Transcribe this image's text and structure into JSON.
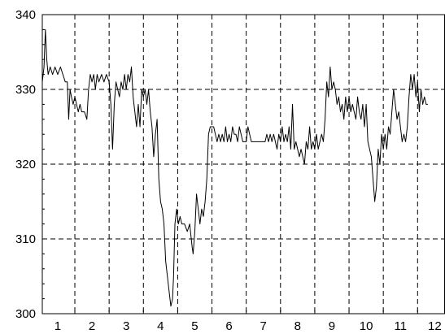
{
  "chart_data": {
    "type": "line",
    "title": "",
    "xlabel": "",
    "ylabel": "",
    "xlim": [
      0.55,
      12.3
    ],
    "ylim": [
      300,
      340
    ],
    "y_ticks": [
      300,
      310,
      320,
      330,
      340
    ],
    "x_ticks": [
      1,
      2,
      3,
      4,
      5,
      6,
      7,
      8,
      9,
      10,
      11,
      12
    ],
    "x_gridlines": [
      1.5,
      2.5,
      3.5,
      4.5,
      5.5,
      6.5,
      7.5,
      8.5,
      9.5,
      10.5,
      11.5
    ],
    "y_gridlines": [
      310,
      320,
      330
    ],
    "grid": true,
    "grid_style": "dashed",
    "series": [
      {
        "color": "#000000",
        "points": [
          [
            0.55,
            331
          ],
          [
            0.6,
            333
          ],
          [
            0.64,
            338
          ],
          [
            0.68,
            334
          ],
          [
            0.72,
            332
          ],
          [
            0.78,
            333
          ],
          [
            0.85,
            332
          ],
          [
            0.92,
            333
          ],
          [
            1.0,
            332
          ],
          [
            1.08,
            333
          ],
          [
            1.15,
            332
          ],
          [
            1.22,
            331
          ],
          [
            1.28,
            331
          ],
          [
            1.32,
            326
          ],
          [
            1.36,
            330
          ],
          [
            1.4,
            329
          ],
          [
            1.45,
            328
          ],
          [
            1.5,
            329
          ],
          [
            1.55,
            328
          ],
          [
            1.6,
            327
          ],
          [
            1.65,
            328
          ],
          [
            1.7,
            327
          ],
          [
            1.78,
            327
          ],
          [
            1.85,
            326
          ],
          [
            1.9,
            330
          ],
          [
            1.95,
            332
          ],
          [
            2.0,
            331
          ],
          [
            2.05,
            332
          ],
          [
            2.1,
            330
          ],
          [
            2.15,
            332
          ],
          [
            2.2,
            331
          ],
          [
            2.28,
            332
          ],
          [
            2.35,
            331
          ],
          [
            2.42,
            332
          ],
          [
            2.5,
            331
          ],
          [
            2.55,
            328
          ],
          [
            2.6,
            322
          ],
          [
            2.65,
            328
          ],
          [
            2.7,
            331
          ],
          [
            2.75,
            330
          ],
          [
            2.8,
            329
          ],
          [
            2.85,
            331
          ],
          [
            2.9,
            330
          ],
          [
            2.95,
            332
          ],
          [
            3.0,
            330
          ],
          [
            3.05,
            332
          ],
          [
            3.1,
            331
          ],
          [
            3.15,
            333
          ],
          [
            3.2,
            329
          ],
          [
            3.25,
            327
          ],
          [
            3.3,
            325
          ],
          [
            3.35,
            328
          ],
          [
            3.4,
            325
          ],
          [
            3.45,
            330
          ],
          [
            3.5,
            329
          ],
          [
            3.55,
            330
          ],
          [
            3.6,
            328
          ],
          [
            3.65,
            330
          ],
          [
            3.7,
            327
          ],
          [
            3.75,
            325
          ],
          [
            3.8,
            321
          ],
          [
            3.85,
            324
          ],
          [
            3.9,
            326
          ],
          [
            3.95,
            318
          ],
          [
            4.0,
            315
          ],
          [
            4.05,
            314
          ],
          [
            4.1,
            312
          ],
          [
            4.15,
            307
          ],
          [
            4.2,
            305
          ],
          [
            4.25,
            303
          ],
          [
            4.3,
            301
          ],
          [
            4.35,
            302
          ],
          [
            4.38,
            305
          ],
          [
            4.42,
            312
          ],
          [
            4.47,
            314
          ],
          [
            4.52,
            312
          ],
          [
            4.57,
            313
          ],
          [
            4.62,
            312
          ],
          [
            4.7,
            312
          ],
          [
            4.78,
            311
          ],
          [
            4.85,
            312
          ],
          [
            4.92,
            309
          ],
          [
            4.95,
            308
          ],
          [
            5.0,
            311
          ],
          [
            5.05,
            316
          ],
          [
            5.1,
            314
          ],
          [
            5.15,
            312
          ],
          [
            5.2,
            314
          ],
          [
            5.25,
            313
          ],
          [
            5.3,
            315
          ],
          [
            5.35,
            318
          ],
          [
            5.4,
            324
          ],
          [
            5.45,
            325
          ],
          [
            5.55,
            325
          ],
          [
            5.6,
            324
          ],
          [
            5.65,
            323
          ],
          [
            5.7,
            324
          ],
          [
            5.75,
            323
          ],
          [
            5.8,
            324
          ],
          [
            5.85,
            323
          ],
          [
            5.9,
            325
          ],
          [
            5.95,
            323
          ],
          [
            6.0,
            324
          ],
          [
            6.05,
            323
          ],
          [
            6.1,
            325
          ],
          [
            6.15,
            324
          ],
          [
            6.2,
            324
          ],
          [
            6.25,
            323
          ],
          [
            6.3,
            325
          ],
          [
            6.35,
            324
          ],
          [
            6.4,
            323
          ],
          [
            6.5,
            323
          ],
          [
            6.55,
            325
          ],
          [
            6.6,
            324
          ],
          [
            6.65,
            323
          ],
          [
            6.75,
            323
          ],
          [
            6.85,
            323
          ],
          [
            6.95,
            323
          ],
          [
            7.05,
            323
          ],
          [
            7.1,
            324
          ],
          [
            7.15,
            323
          ],
          [
            7.2,
            324
          ],
          [
            7.25,
            323
          ],
          [
            7.3,
            324
          ],
          [
            7.35,
            323
          ],
          [
            7.4,
            322
          ],
          [
            7.45,
            324
          ],
          [
            7.5,
            323
          ],
          [
            7.55,
            325
          ],
          [
            7.6,
            323
          ],
          [
            7.65,
            324
          ],
          [
            7.7,
            323
          ],
          [
            7.75,
            325
          ],
          [
            7.8,
            322
          ],
          [
            7.85,
            328
          ],
          [
            7.9,
            322
          ],
          [
            7.95,
            323
          ],
          [
            8.0,
            322
          ],
          [
            8.05,
            321
          ],
          [
            8.1,
            322
          ],
          [
            8.15,
            321
          ],
          [
            8.2,
            320
          ],
          [
            8.25,
            323
          ],
          [
            8.3,
            322
          ],
          [
            8.35,
            325
          ],
          [
            8.4,
            322
          ],
          [
            8.45,
            323
          ],
          [
            8.5,
            322
          ],
          [
            8.55,
            324
          ],
          [
            8.6,
            322
          ],
          [
            8.65,
            323
          ],
          [
            8.7,
            324
          ],
          [
            8.75,
            323
          ],
          [
            8.8,
            326
          ],
          [
            8.85,
            331
          ],
          [
            8.9,
            329
          ],
          [
            8.95,
            333
          ],
          [
            9.0,
            330
          ],
          [
            9.05,
            331
          ],
          [
            9.1,
            330
          ],
          [
            9.15,
            328
          ],
          [
            9.2,
            329
          ],
          [
            9.25,
            327
          ],
          [
            9.3,
            328
          ],
          [
            9.35,
            326
          ],
          [
            9.4,
            329
          ],
          [
            9.45,
            327
          ],
          [
            9.5,
            329
          ],
          [
            9.55,
            327
          ],
          [
            9.6,
            328
          ],
          [
            9.65,
            327
          ],
          [
            9.7,
            326
          ],
          [
            9.75,
            329
          ],
          [
            9.8,
            327
          ],
          [
            9.85,
            326
          ],
          [
            9.9,
            328
          ],
          [
            9.95,
            325
          ],
          [
            10.0,
            328
          ],
          [
            10.05,
            323
          ],
          [
            10.1,
            322
          ],
          [
            10.15,
            321
          ],
          [
            10.2,
            318
          ],
          [
            10.25,
            315
          ],
          [
            10.3,
            317
          ],
          [
            10.35,
            322
          ],
          [
            10.4,
            320
          ],
          [
            10.45,
            324
          ],
          [
            10.5,
            322
          ],
          [
            10.55,
            324
          ],
          [
            10.6,
            322
          ],
          [
            10.65,
            325
          ],
          [
            10.7,
            324
          ],
          [
            10.75,
            327
          ],
          [
            10.8,
            330
          ],
          [
            10.85,
            328
          ],
          [
            10.9,
            326
          ],
          [
            10.95,
            327
          ],
          [
            11.0,
            325
          ],
          [
            11.05,
            323
          ],
          [
            11.1,
            324
          ],
          [
            11.15,
            323
          ],
          [
            11.2,
            325
          ],
          [
            11.25,
            329
          ],
          [
            11.3,
            332
          ],
          [
            11.35,
            330
          ],
          [
            11.4,
            332
          ],
          [
            11.45,
            329
          ],
          [
            11.5,
            331
          ],
          [
            11.55,
            327
          ],
          [
            11.6,
            330
          ],
          [
            11.65,
            328
          ],
          [
            11.7,
            329
          ],
          [
            11.75,
            328
          ],
          [
            11.8,
            328
          ]
        ]
      }
    ]
  }
}
